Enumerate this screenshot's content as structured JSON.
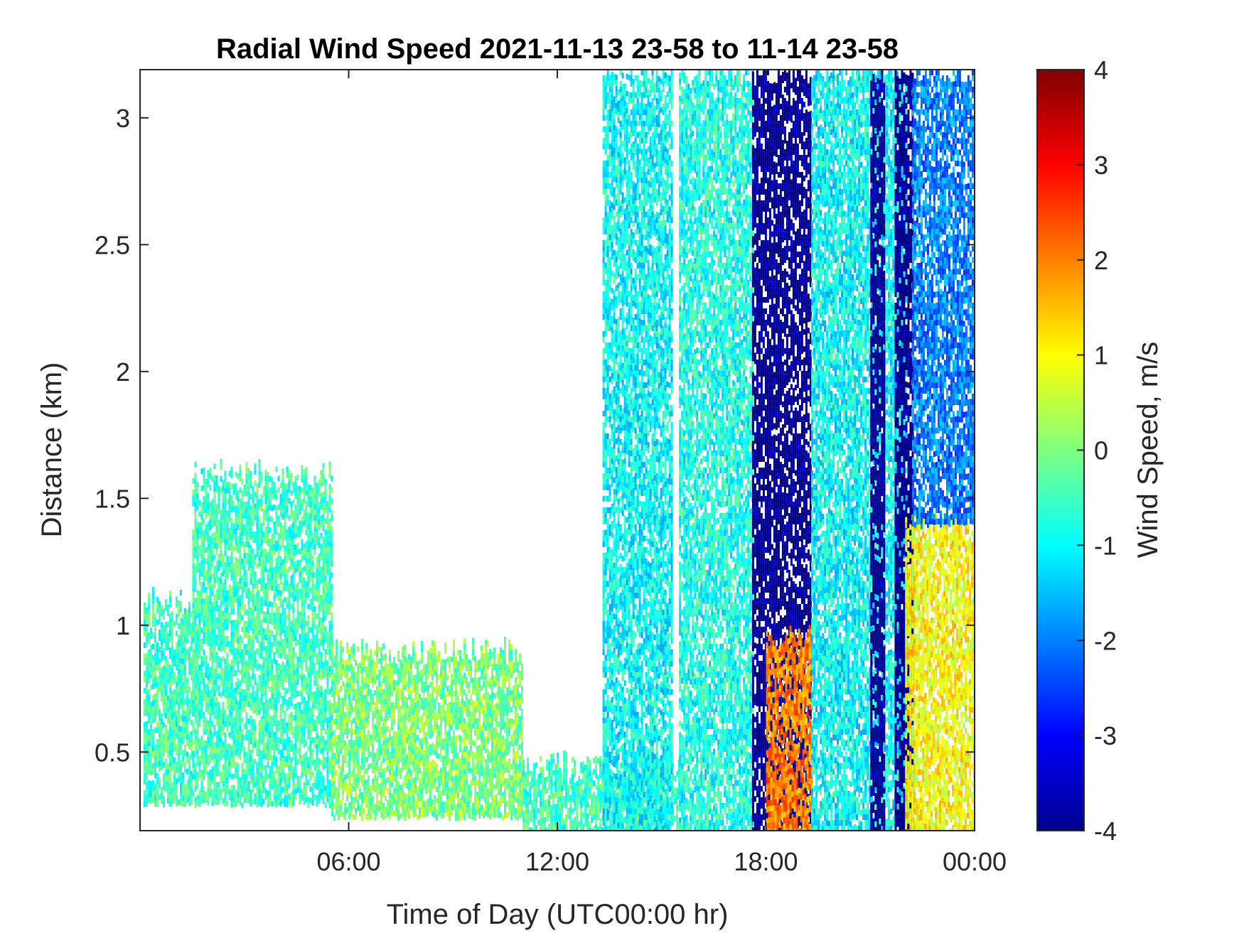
{
  "chart_data": {
    "type": "heatmap",
    "title": "Radial Wind Speed 2021-11-13 23-58 to 11-14 23-58",
    "xlabel": "Time of Day (UTC00:00 hr)",
    "ylabel": "Distance (km)",
    "x_unit": "hours since 2021-11-13 23:58 UTC",
    "xlim": [
      0,
      24
    ],
    "ylim": [
      0.19,
      3.19
    ],
    "x_ticks": [
      {
        "value": 6,
        "label": "06:00"
      },
      {
        "value": 12,
        "label": "12:00"
      },
      {
        "value": 18,
        "label": "18:00"
      },
      {
        "value": 24,
        "label": "00:00"
      }
    ],
    "y_ticks": [
      {
        "value": 0.5,
        "label": "0.5"
      },
      {
        "value": 1,
        "label": "1"
      },
      {
        "value": 1.5,
        "label": "1.5"
      },
      {
        "value": 2,
        "label": "2"
      },
      {
        "value": 2.5,
        "label": "2.5"
      },
      {
        "value": 3,
        "label": "3"
      }
    ],
    "colorbar": {
      "label": "Wind Speed, m/s",
      "colormap": "jet",
      "clim": [
        -4,
        4
      ],
      "ticks": [
        {
          "value": 4,
          "label": "4"
        },
        {
          "value": 3,
          "label": "3"
        },
        {
          "value": 2,
          "label": "2"
        },
        {
          "value": 1,
          "label": "1"
        },
        {
          "value": 0,
          "label": "0"
        },
        {
          "value": -1,
          "label": "-1"
        },
        {
          "value": -2,
          "label": "-2"
        },
        {
          "value": -3,
          "label": "-3"
        },
        {
          "value": -4,
          "label": "-4"
        }
      ]
    },
    "data_regions": [
      {
        "x_range": [
          0.1,
          1.5
        ],
        "y_range": [
          0.3,
          1.1
        ],
        "value": -0.5
      },
      {
        "x_range": [
          1.5,
          5.5
        ],
        "y_range": [
          0.3,
          1.6
        ],
        "value": -0.5
      },
      {
        "x_range": [
          5.5,
          11.0
        ],
        "y_range": [
          0.25,
          0.9
        ],
        "value": 0.0
      },
      {
        "x_range": [
          11.0,
          15.5
        ],
        "y_range": [
          0.19,
          0.45
        ],
        "value": -0.5
      },
      {
        "x_range": [
          13.3,
          15.3
        ],
        "y_range": [
          0.19,
          3.19
        ],
        "value": -1.0
      },
      {
        "x_range": [
          15.5,
          17.6
        ],
        "y_range": [
          0.19,
          3.19
        ],
        "value": -0.8
      },
      {
        "x_range": [
          17.6,
          19.3
        ],
        "y_range": [
          0.19,
          3.19
        ],
        "value": -4.0
      },
      {
        "x_range": [
          18.0,
          19.3
        ],
        "y_range": [
          0.19,
          0.95
        ],
        "value": 2.0
      },
      {
        "x_range": [
          19.3,
          22.0
        ],
        "y_range": [
          0.19,
          3.19
        ],
        "value": -1.0
      },
      {
        "x_range": [
          21.0,
          21.4
        ],
        "y_range": [
          0.19,
          3.19
        ],
        "value": -4.0
      },
      {
        "x_range": [
          21.7,
          22.2
        ],
        "y_range": [
          0.19,
          3.19
        ],
        "value": -4.0
      },
      {
        "x_range": [
          22.0,
          24.0
        ],
        "y_range": [
          0.19,
          1.4
        ],
        "value": 1.0
      },
      {
        "x_range": [
          22.2,
          24.0
        ],
        "y_range": [
          1.4,
          3.19
        ],
        "value": -2.0
      }
    ]
  },
  "colors": {
    "axis": "#262626",
    "background": "#ffffff"
  }
}
